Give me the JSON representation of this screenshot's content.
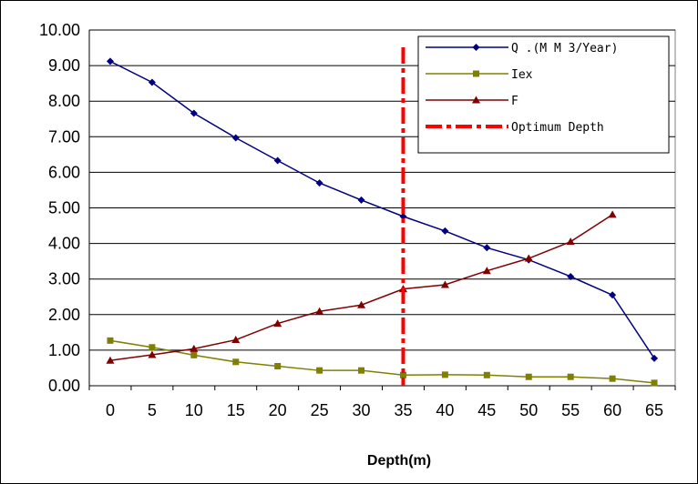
{
  "chart_data": {
    "type": "line",
    "x": [
      0,
      5,
      10,
      15,
      20,
      25,
      30,
      35,
      40,
      45,
      50,
      55,
      60,
      65
    ],
    "xlabel": "Depth(m)",
    "ylabel": "",
    "title": "",
    "ylim": [
      0,
      10
    ],
    "yticks": [
      "0.00",
      "1.00",
      "2.00",
      "3.00",
      "4.00",
      "5.00",
      "6.00",
      "7.00",
      "8.00",
      "9.00",
      "10.00"
    ],
    "grid": "horizontal",
    "legend_position": "top-right",
    "series": [
      {
        "name": "Q .(M M 3/Year)",
        "color": "#000080",
        "marker": "diamond",
        "values": [
          9.12,
          8.53,
          7.66,
          6.97,
          6.33,
          5.7,
          5.22,
          4.76,
          4.35,
          3.88,
          3.54,
          3.07,
          2.55,
          0.77
        ]
      },
      {
        "name": "Iex",
        "color": "#808000",
        "marker": "square",
        "values": [
          1.27,
          1.08,
          0.86,
          0.67,
          0.55,
          0.43,
          0.43,
          0.3,
          0.31,
          0.3,
          0.25,
          0.25,
          0.2,
          0.08
        ]
      },
      {
        "name": "F",
        "color": "#800000",
        "marker": "triangle",
        "values": [
          0.71,
          0.87,
          1.04,
          1.29,
          1.75,
          2.09,
          2.27,
          2.72,
          2.84,
          3.23,
          3.58,
          4.05,
          4.81,
          null
        ]
      }
    ],
    "optimum_line": {
      "name": "Optimum Depth",
      "x": 35,
      "color": "#ff0000"
    }
  }
}
